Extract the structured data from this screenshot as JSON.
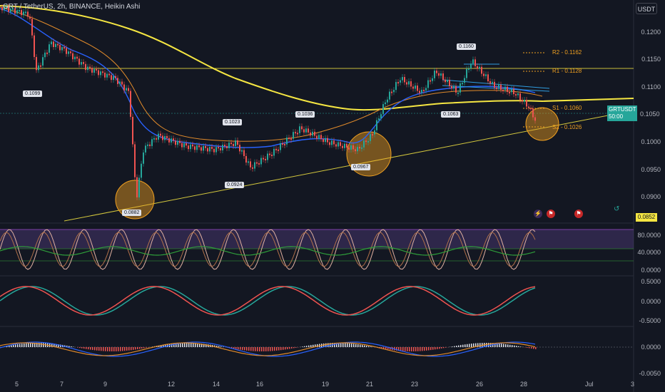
{
  "header": {
    "title": "GRT / TetherUS, 2h, BINANCE, Heikin Ashi",
    "currency": "USDT"
  },
  "price_axis": {
    "main": [
      "0.1200",
      "0.1150",
      "0.1100",
      "0.1050",
      "0.1000",
      "0.0950",
      "0.0900"
    ],
    "last_price_symbol": "GRTUSDT",
    "last_price": "0.1057",
    "countdown": "50:00",
    "low_marker": "0.0852",
    "stoch": [
      "80.0000",
      "40.0000",
      "0.0000"
    ],
    "osc": [
      "0.5000",
      "0.0000",
      "-0.5000"
    ],
    "macd": [
      "0.0000",
      "-0.0050"
    ]
  },
  "date_axis": [
    "5",
    "7",
    "9",
    "12",
    "14",
    "16",
    "19",
    "21",
    "23",
    "26",
    "28",
    "Jul",
    "3"
  ],
  "price_tags": [
    "0.1099",
    "0.0882",
    "0.1023",
    "0.0924",
    "0.1036",
    "0.0967",
    "0.1063",
    "0.1160"
  ],
  "pivots": {
    "r2": "R2 - 0.1162",
    "r1": "R1 - 0.1128",
    "s1": "S1 - 0.1060",
    "s2": "S2 - 0.1026"
  },
  "colors": {
    "background": "#131722",
    "up": "#26a69a",
    "down": "#ef5350",
    "ma_long": "#f5e642",
    "ma_mid": "#e08a2b",
    "ma_fast": "#2962ff",
    "pivot": "#f0a020",
    "circle": "#f0a020"
  },
  "icons": [
    "lightning-icon",
    "flag-icon",
    "flag-icon"
  ]
}
